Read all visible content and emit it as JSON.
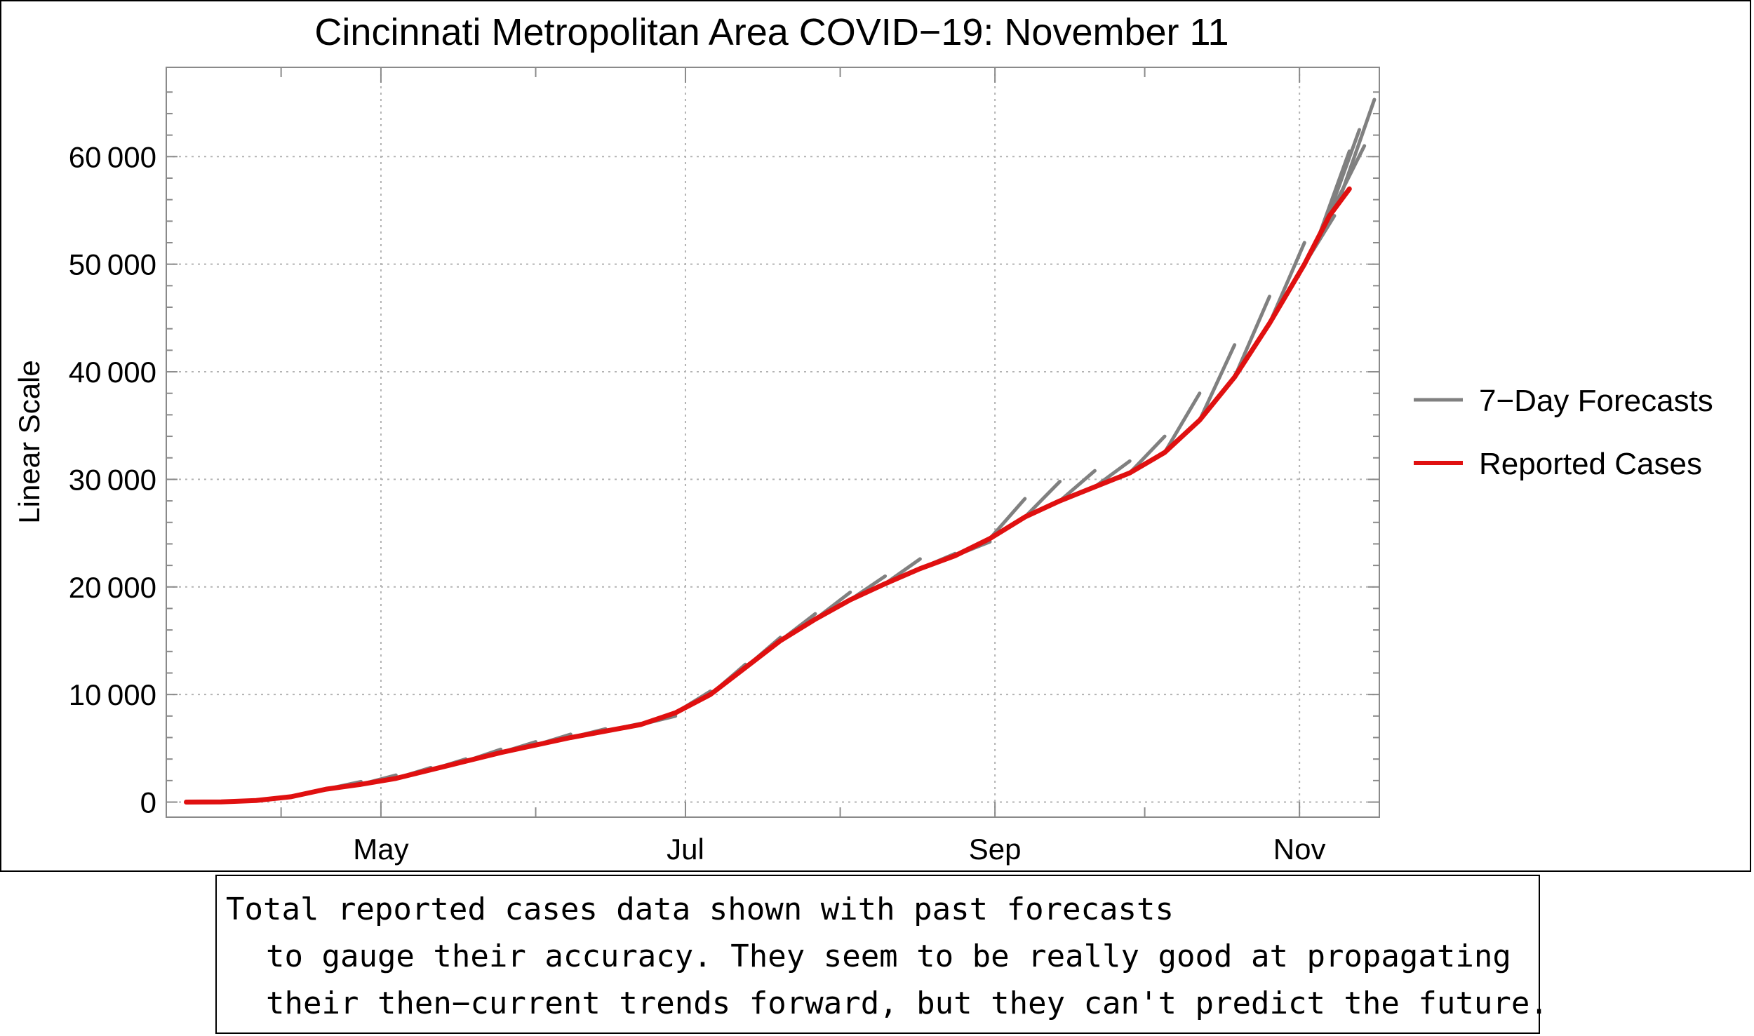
{
  "chart_data": {
    "type": "line",
    "title": "Cincinnati Metropolitan Area COVID−19: November 11",
    "ylabel": "Linear Scale",
    "xlabel": "",
    "x_unit": "day of year 2020",
    "xlim": [
      79,
      322
    ],
    "ylim": [
      -1400,
      68300
    ],
    "yticks": [
      0,
      10000,
      20000,
      30000,
      40000,
      50000,
      60000
    ],
    "ytick_labels": [
      "0",
      "10 000",
      "20 000",
      "30 000",
      "40 000",
      "50 000",
      "60 000"
    ],
    "xticks": [
      122,
      183,
      245,
      306
    ],
    "xtick_labels": [
      "May",
      "Jul",
      "Sep",
      "Nov"
    ],
    "minor_xticks": [
      102,
      153,
      214,
      275
    ],
    "grid": true,
    "legend_position": "right",
    "series": [
      {
        "name": "Reported Cases",
        "color": "#e01010",
        "x": [
          83,
          90,
          97,
          104,
          111,
          118,
          125,
          132,
          139,
          146,
          153,
          160,
          167,
          174,
          181,
          188,
          195,
          202,
          209,
          216,
          223,
          230,
          237,
          244,
          251,
          258,
          265,
          272,
          279,
          286,
          293,
          300,
          307,
          312,
          316
        ],
        "y": [
          0,
          20,
          150,
          500,
          1200,
          1650,
          2200,
          3000,
          3800,
          4600,
          5300,
          6000,
          6600,
          7200,
          8300,
          10000,
          12500,
          15000,
          17000,
          18800,
          20300,
          21700,
          22900,
          24500,
          26500,
          28000,
          29300,
          30600,
          32500,
          35500,
          39500,
          44500,
          50000,
          54500,
          57000
        ]
      },
      {
        "name": "7−Day Forecasts",
        "color": "#808080",
        "segments": [
          {
            "x": [
              111,
              118
            ],
            "y": [
              1200,
              1900
            ]
          },
          {
            "x": [
              118,
              125
            ],
            "y": [
              1650,
              2500
            ]
          },
          {
            "x": [
              125,
              132
            ],
            "y": [
              2200,
              3200
            ]
          },
          {
            "x": [
              132,
              139
            ],
            "y": [
              3000,
              4000
            ]
          },
          {
            "x": [
              139,
              146
            ],
            "y": [
              3800,
              4900
            ]
          },
          {
            "x": [
              146,
              153
            ],
            "y": [
              4600,
              5600
            ]
          },
          {
            "x": [
              153,
              160
            ],
            "y": [
              5300,
              6300
            ]
          },
          {
            "x": [
              160,
              167
            ],
            "y": [
              6000,
              6800
            ]
          },
          {
            "x": [
              167,
              174
            ],
            "y": [
              6600,
              7300
            ]
          },
          {
            "x": [
              174,
              181
            ],
            "y": [
              7200,
              8000
            ]
          },
          {
            "x": [
              181,
              188
            ],
            "y": [
              8300,
              10300
            ]
          },
          {
            "x": [
              188,
              195
            ],
            "y": [
              10000,
              12800
            ]
          },
          {
            "x": [
              195,
              202
            ],
            "y": [
              12500,
              15300
            ]
          },
          {
            "x": [
              202,
              209
            ],
            "y": [
              15000,
              17500
            ]
          },
          {
            "x": [
              209,
              216
            ],
            "y": [
              17000,
              19500
            ]
          },
          {
            "x": [
              216,
              223
            ],
            "y": [
              18800,
              21000
            ]
          },
          {
            "x": [
              223,
              230
            ],
            "y": [
              20300,
              22600
            ]
          },
          {
            "x": [
              230,
              237
            ],
            "y": [
              21700,
              23100
            ]
          },
          {
            "x": [
              237,
              244
            ],
            "y": [
              22900,
              24200
            ]
          },
          {
            "x": [
              244,
              251
            ],
            "y": [
              24500,
              28200
            ]
          },
          {
            "x": [
              251,
              258
            ],
            "y": [
              26500,
              29800
            ]
          },
          {
            "x": [
              258,
              265
            ],
            "y": [
              28000,
              30800
            ]
          },
          {
            "x": [
              265,
              272
            ],
            "y": [
              29300,
              31700
            ]
          },
          {
            "x": [
              272,
              279
            ],
            "y": [
              30600,
              34000
            ]
          },
          {
            "x": [
              279,
              286
            ],
            "y": [
              32500,
              38000
            ]
          },
          {
            "x": [
              286,
              293
            ],
            "y": [
              35500,
              42500
            ]
          },
          {
            "x": [
              293,
              300
            ],
            "y": [
              39500,
              47000
            ]
          },
          {
            "x": [
              300,
              307
            ],
            "y": [
              44500,
              52000
            ]
          },
          {
            "x": [
              307,
              313
            ],
            "y": [
              50000,
              54500
            ]
          },
          {
            "x": [
              309,
              316
            ],
            "y": [
              51500,
              60500
            ]
          },
          {
            "x": [
              311,
              318
            ],
            "y": [
              53500,
              62500
            ]
          },
          {
            "x": [
              312,
              319
            ],
            "y": [
              54500,
              61000
            ]
          },
          {
            "x": [
              314,
              321
            ],
            "y": [
              56000,
              65300
            ]
          }
        ]
      }
    ]
  },
  "legend": {
    "items": [
      {
        "label": "7−Day Forecasts",
        "color": "#808080"
      },
      {
        "label": "Reported Cases",
        "color": "#e01010"
      }
    ]
  },
  "caption": {
    "lines": [
      "Total reported cases data shown with past forecasts",
      "to gauge their accuracy. They seem to be really good at propagating",
      "their then−current trends forward, but they can't predict the future."
    ]
  }
}
